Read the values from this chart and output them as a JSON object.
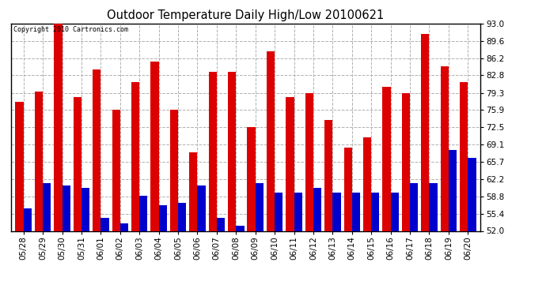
{
  "title": "Outdoor Temperature Daily High/Low 20100621",
  "copyright": "Copyright 2010 Cartronics.com",
  "dates": [
    "05/28",
    "05/29",
    "05/30",
    "05/31",
    "06/01",
    "06/02",
    "06/03",
    "06/04",
    "06/05",
    "06/06",
    "06/07",
    "06/08",
    "06/09",
    "06/10",
    "06/11",
    "06/12",
    "06/13",
    "06/14",
    "06/15",
    "06/16",
    "06/17",
    "06/18",
    "06/19",
    "06/20"
  ],
  "highs": [
    77.5,
    79.5,
    93.0,
    78.5,
    84.0,
    75.9,
    81.5,
    85.5,
    75.9,
    67.5,
    83.5,
    83.5,
    72.5,
    87.5,
    78.5,
    79.3,
    74.0,
    68.5,
    70.5,
    80.5,
    79.3,
    91.0,
    84.5,
    81.5
  ],
  "lows": [
    56.5,
    61.5,
    61.0,
    60.5,
    54.5,
    53.5,
    59.0,
    57.0,
    57.5,
    61.0,
    54.5,
    53.0,
    61.5,
    59.5,
    59.5,
    60.5,
    59.5,
    59.5,
    59.5,
    59.5,
    61.5,
    61.5,
    68.0,
    66.5
  ],
  "high_color": "#dd0000",
  "low_color": "#0000cc",
  "bg_color": "#ffffff",
  "grid_color": "#b0b0b0",
  "yticks": [
    52.0,
    55.4,
    58.8,
    62.2,
    65.7,
    69.1,
    72.5,
    75.9,
    79.3,
    82.8,
    86.2,
    89.6,
    93.0
  ],
  "ymin": 52.0,
  "ymax": 93.0,
  "bar_width": 0.42,
  "figsize": [
    6.9,
    3.75
  ],
  "dpi": 100
}
